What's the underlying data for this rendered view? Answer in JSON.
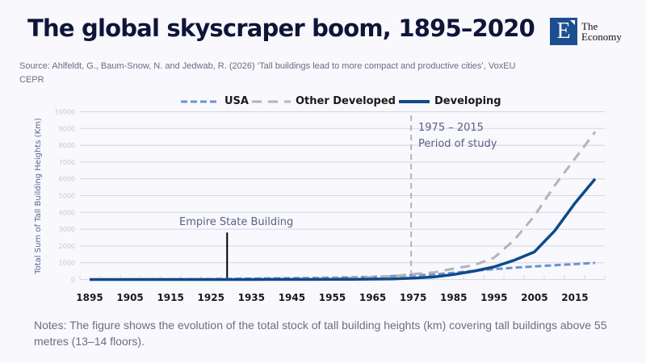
{
  "header": {
    "title": "The global skyscraper boom, 1895–2020",
    "source": "Source: Ahlfeldt, G., Baum-Snow, N. and Jedwab, R. (2026) ‘Tall buildings lead to more compact and productive cities’, VoxEU CEPR",
    "logo": {
      "letter": "E",
      "line1": "The",
      "line2": "Economy"
    }
  },
  "notes": "Notes: The figure shows the evolution of the total stock of tall building heights (km) covering tall buildings above 55 metres (13–14 floors).",
  "colors": {
    "usa": "#6a93cf",
    "other_developed": "#b4b4b8",
    "developing": "#0f4a8a",
    "grid": "#d3d8e3",
    "background": "#f8f8fd",
    "title": "#0e1537"
  },
  "chart_data": {
    "type": "line",
    "title": "The global skyscraper boom, 1895–2020",
    "xlabel": "",
    "ylabel": "Total Sum of Tall Building Heights (Km)",
    "x": [
      1895,
      1900,
      1905,
      1910,
      1915,
      1920,
      1925,
      1930,
      1935,
      1940,
      1945,
      1950,
      1955,
      1960,
      1965,
      1970,
      1975,
      1980,
      1985,
      1990,
      1995,
      2000,
      2005,
      2010,
      2015,
      2020
    ],
    "x_tick_labels": [
      "1895",
      "1905",
      "1915",
      "1925",
      "1935",
      "1945",
      "1955",
      "1965",
      "1975",
      "1985",
      "1995",
      "2005",
      "2015"
    ],
    "y_ticks": [
      0,
      1000,
      2000,
      3000,
      4000,
      5000,
      6000,
      7000,
      8000,
      9000,
      10000
    ],
    "ylim": [
      0,
      10000
    ],
    "grid": true,
    "legend_position": "top-center",
    "series": [
      {
        "name": "USA",
        "style": "dashed-short",
        "values": [
          0,
          2,
          5,
          8,
          12,
          18,
          25,
          40,
          55,
          65,
          75,
          90,
          110,
          130,
          160,
          200,
          260,
          300,
          400,
          520,
          620,
          700,
          780,
          850,
          920,
          990
        ]
      },
      {
        "name": "Other Developed",
        "style": "dashed-long",
        "values": [
          0,
          0,
          0,
          1,
          2,
          3,
          5,
          8,
          12,
          18,
          25,
          40,
          60,
          90,
          130,
          200,
          320,
          420,
          650,
          850,
          1300,
          2350,
          3800,
          5600,
          7200,
          8800
        ]
      },
      {
        "name": "Developing",
        "style": "solid",
        "values": [
          0,
          0,
          0,
          0,
          0,
          0,
          0,
          1,
          2,
          3,
          4,
          6,
          10,
          15,
          25,
          40,
          80,
          150,
          300,
          500,
          750,
          1150,
          1650,
          2900,
          4550,
          6000
        ]
      }
    ],
    "annotations": [
      {
        "label": "Empire State Building",
        "x": 1929,
        "y_top": 2800,
        "type": "solid-line"
      },
      {
        "label_line1": "1975 – 2015",
        "label_line2": "Period of study",
        "x": 1974.5,
        "type": "dashed-line"
      }
    ]
  }
}
